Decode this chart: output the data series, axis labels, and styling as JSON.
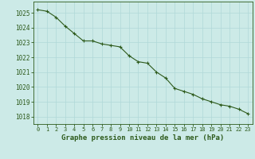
{
  "x": [
    0,
    1,
    2,
    3,
    4,
    5,
    6,
    7,
    8,
    9,
    10,
    11,
    12,
    13,
    14,
    15,
    16,
    17,
    18,
    19,
    20,
    21,
    22,
    23
  ],
  "y": [
    1025.2,
    1025.1,
    1024.7,
    1024.1,
    1023.6,
    1023.1,
    1023.1,
    1022.9,
    1022.8,
    1022.7,
    1022.1,
    1021.7,
    1021.6,
    1021.0,
    1020.6,
    1019.9,
    1019.7,
    1019.5,
    1019.2,
    1019.0,
    1018.8,
    1018.7,
    1018.5,
    1018.2
  ],
  "ylim": [
    1017.5,
    1025.75
  ],
  "xlim": [
    -0.5,
    23.5
  ],
  "yticks": [
    1018,
    1019,
    1020,
    1021,
    1022,
    1023,
    1024,
    1025
  ],
  "xticks": [
    0,
    1,
    2,
    3,
    4,
    5,
    6,
    7,
    8,
    9,
    10,
    11,
    12,
    13,
    14,
    15,
    16,
    17,
    18,
    19,
    20,
    21,
    22,
    23
  ],
  "xlabel": "Graphe pression niveau de la mer (hPa)",
  "line_color": "#2d5a1b",
  "marker_color": "#2d5a1b",
  "bg_color": "#cceae7",
  "grid_color": "#b0d8d8",
  "axis_color": "#2d5a1b",
  "tick_label_color": "#2d5a1b",
  "xlabel_color": "#2d5a1b",
  "xlabel_fontsize": 6.5,
  "ytick_fontsize": 5.5,
  "xtick_fontsize": 5.0,
  "line_width": 0.8,
  "marker_size": 2.5
}
